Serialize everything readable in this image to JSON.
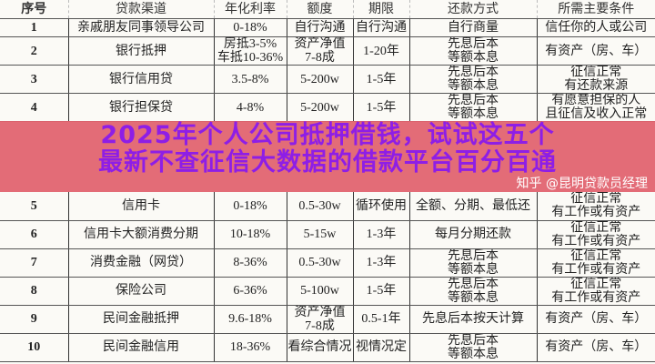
{
  "table": {
    "headers": [
      "序号",
      "贷款渠道",
      "年化利率",
      "额度",
      "期限",
      "还款方式",
      "所需主要条件"
    ],
    "rows": [
      [
        "1",
        "亲戚朋友同事领导公司",
        "0-18%",
        "自行沟通",
        "自行沟通",
        "自行商量",
        "信任你的人或公司"
      ],
      [
        "2",
        "银行抵押",
        "房抵3-5%\n车抵10-36%",
        "资产净值\n7-8成",
        "1-20年",
        "先息后本\n等额本息",
        "有资产（房、车）"
      ],
      [
        "3",
        "银行信用贷",
        "3.5-8%",
        "5-200w",
        "1-5年",
        "先息后本\n等额本息",
        "征信正常\n有还款来源"
      ],
      [
        "4",
        "银行担保贷",
        "4-8%",
        "5-200w",
        "1-5年",
        "先息后本\n等额本息",
        "有愿意担保的人\n且征信及收入正常"
      ],
      [
        "5",
        "信用卡",
        "0-18%",
        "0.5-30w",
        "循环使用",
        "全额、分期、最低还",
        "征信正常\n有工作或有资产"
      ],
      [
        "6",
        "信用卡大额消费分期",
        "10-18%",
        "5-15w",
        "1-3年",
        "每月分期还款",
        "征信正常\n有工作或有资产"
      ],
      [
        "7",
        "消费金融（网贷）",
        "8-36%",
        "0.5-30w",
        "1-3年",
        "先息后本\n等额本息",
        "征信正常\n有工作或有资产"
      ],
      [
        "8",
        "保险公司",
        "6-36%",
        "5-100w",
        "1-5年",
        "先息后本\n等额本息",
        "征信正常\n有工作或有资产"
      ],
      [
        "9",
        "民间金融抵押",
        "9.6-18%",
        "资产净值\n7-8成",
        "0.5-1年",
        "先息后本按天计算",
        "有资产（房、车）"
      ],
      [
        "10",
        "民间金融信用",
        "18-36%",
        "看综合情况",
        "视情况定",
        "先息后本\n等额本息",
        "有资产（房、车）"
      ]
    ]
  },
  "banner": {
    "line1": "2025年个人公司抵押借钱，试试这五个",
    "line2": "最新不查征信大数据的借款平台百分百通",
    "background": "#e2646f",
    "text_color": "#8e1ee6"
  },
  "watermark": "知乎 @昆明贷款员经理"
}
